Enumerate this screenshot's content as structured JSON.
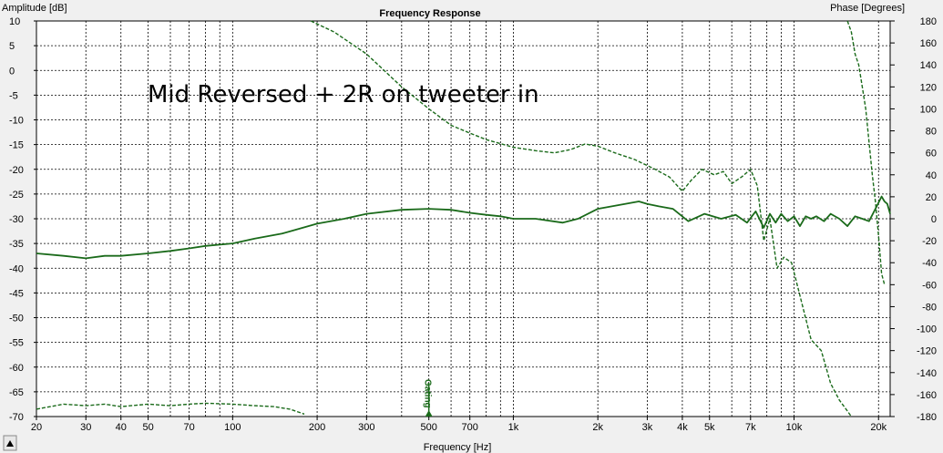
{
  "chart_data": {
    "type": "line",
    "title": "Frequency Response",
    "xlabel": "Frequency [Hz]",
    "ylabel": "Amplitude [dB]",
    "y2label": "Phase [Degrees]",
    "xscale": "log",
    "xlim": [
      20,
      22000
    ],
    "ylim": [
      -70,
      10
    ],
    "y2lim": [
      -180,
      180
    ],
    "grid": true,
    "x_ticks": [
      {
        "v": 20,
        "label": "20"
      },
      {
        "v": 30,
        "label": "30"
      },
      {
        "v": 40,
        "label": "40"
      },
      {
        "v": 50,
        "label": "50"
      },
      {
        "v": 70,
        "label": "70"
      },
      {
        "v": 100,
        "label": "100"
      },
      {
        "v": 200,
        "label": "200"
      },
      {
        "v": 300,
        "label": "300"
      },
      {
        "v": 500,
        "label": "500"
      },
      {
        "v": 700,
        "label": "700"
      },
      {
        "v": 1000,
        "label": "1k"
      },
      {
        "v": 2000,
        "label": "2k"
      },
      {
        "v": 3000,
        "label": "3k"
      },
      {
        "v": 4000,
        "label": "4k"
      },
      {
        "v": 5000,
        "label": "5k"
      },
      {
        "v": 7000,
        "label": "7k"
      },
      {
        "v": 10000,
        "label": "10k"
      },
      {
        "v": 20000,
        "label": "20k"
      }
    ],
    "y_ticks": [
      10,
      5,
      0,
      -5,
      -10,
      -15,
      -20,
      -25,
      -30,
      -35,
      -40,
      -45,
      -50,
      -55,
      -60,
      -65,
      -70
    ],
    "y2_ticks": [
      180,
      160,
      140,
      120,
      100,
      80,
      60,
      40,
      20,
      0,
      -20,
      -40,
      -60,
      -80,
      -100,
      -120,
      -140,
      -160,
      -180
    ],
    "annotation": "Mid Reversed + 2R on tweeter in",
    "marker": {
      "x": 500,
      "label": "Gating"
    },
    "series": [
      {
        "axis": "left",
        "style": "solid",
        "color": "#1a6a1a",
        "x": [
          20,
          25,
          30,
          35,
          40,
          50,
          60,
          70,
          80,
          100,
          120,
          150,
          200,
          250,
          300,
          400,
          500,
          600,
          700,
          800,
          900,
          1000,
          1200,
          1500,
          1700,
          2000,
          2500,
          2800,
          3000,
          3300,
          3700,
          4200,
          4800,
          5500,
          6200,
          6800,
          7300,
          7800,
          8200,
          8600,
          9000,
          9500,
          10000,
          10500,
          11000,
          11500,
          12000,
          12800,
          13500,
          14500,
          15500,
          16500,
          17500,
          18500,
          19500,
          20500,
          21000,
          21500,
          22000
        ],
        "y": [
          -37,
          -37.5,
          -38,
          -37.5,
          -37.5,
          -37,
          -36.5,
          -36,
          -35.5,
          -35,
          -34,
          -33,
          -31,
          -30,
          -29,
          -28.2,
          -28,
          -28.2,
          -28.8,
          -29.2,
          -29.5,
          -30,
          -30,
          -30.8,
          -30,
          -28,
          -27,
          -26.5,
          -27,
          -27.5,
          -28,
          -30.5,
          -29,
          -30,
          -29.2,
          -30.8,
          -28.5,
          -31.8,
          -29,
          -30.8,
          -29,
          -30.5,
          -29.5,
          -31.5,
          -29.5,
          -30,
          -29.5,
          -30.5,
          -29,
          -30,
          -31.5,
          -29.5,
          -30,
          -30.5,
          -28,
          -25.5,
          -26.5,
          -27,
          -29
        ]
      },
      {
        "axis": "right",
        "style": "dashed",
        "color": "#1a6a1a",
        "x": [
          190,
          230,
          300,
          400,
          500,
          600,
          700,
          800,
          1000,
          1200,
          1400,
          1600,
          1800,
          2000,
          2300,
          2700,
          3200,
          3600,
          4000,
          4300,
          4700,
          5200,
          5600,
          6000,
          6500,
          7000,
          7400,
          7800,
          8200,
          8700,
          9200,
          9800,
          10500,
          11500,
          12500,
          13500,
          14500,
          15500,
          16000
        ],
        "y": [
          180,
          170,
          150,
          120,
          100,
          85,
          78,
          72,
          65,
          62,
          60,
          63,
          68,
          66,
          60,
          54,
          45,
          38,
          25,
          35,
          45,
          40,
          43,
          32,
          38,
          45,
          30,
          -20,
          0,
          -45,
          -35,
          -40,
          -70,
          -110,
          -120,
          -150,
          -165,
          -175,
          -180
        ]
      },
      {
        "axis": "right",
        "style": "dashed",
        "color": "#1a6a1a",
        "x": [
          15500,
          16000,
          16500,
          17000,
          17500,
          18000,
          18500,
          19000,
          19500,
          20000,
          20500,
          21000
        ],
        "y": [
          180,
          170,
          150,
          140,
          120,
          100,
          70,
          40,
          15,
          -15,
          -50,
          -60
        ]
      },
      {
        "axis": "left",
        "style": "dashed",
        "color": "#1a6a1a",
        "x": [
          20,
          25,
          30,
          35,
          40,
          50,
          60,
          70,
          80,
          100,
          120,
          140,
          160,
          180
        ],
        "y": [
          -68.5,
          -67.5,
          -67.8,
          -67.5,
          -68,
          -67.5,
          -67.8,
          -67.5,
          -67.3,
          -67.5,
          -67.8,
          -68,
          -68.5,
          -69.5
        ]
      }
    ]
  }
}
